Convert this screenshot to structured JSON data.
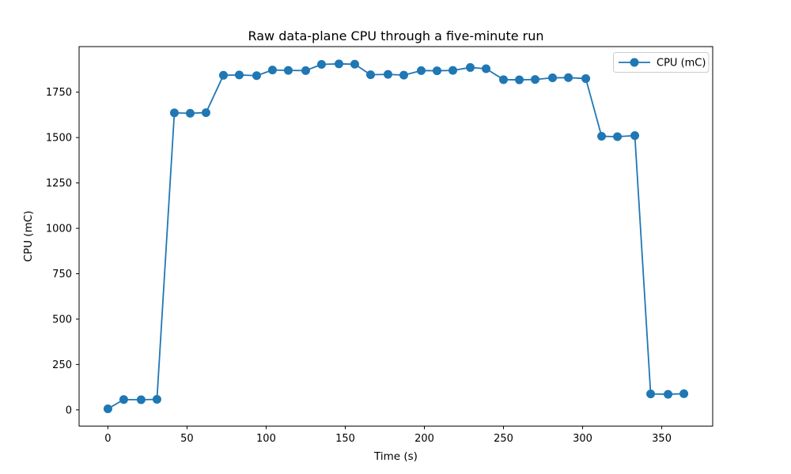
{
  "chart_data": {
    "type": "line",
    "title": "Raw data-plane CPU through a five-minute run",
    "xlabel": "Time (s)",
    "ylabel": "CPU (mC)",
    "series": [
      {
        "name": "CPU (mC)",
        "color": "#1f77b4",
        "marker": "circle",
        "x": [
          0,
          10,
          21,
          31,
          42,
          52,
          62,
          73,
          83,
          94,
          104,
          114,
          125,
          135,
          146,
          156,
          166,
          177,
          187,
          198,
          208,
          218,
          229,
          239,
          250,
          260,
          270,
          281,
          291,
          302,
          312,
          322,
          333,
          343,
          354,
          364
        ],
        "y": [
          6,
          57,
          56,
          58,
          1636,
          1634,
          1637,
          1843,
          1845,
          1841,
          1872,
          1870,
          1869,
          1903,
          1906,
          1904,
          1846,
          1848,
          1844,
          1869,
          1868,
          1870,
          1886,
          1879,
          1819,
          1818,
          1820,
          1829,
          1830,
          1825,
          1507,
          1505,
          1511,
          88,
          86,
          89
        ]
      }
    ],
    "xticks": [
      0,
      50,
      100,
      150,
      200,
      250,
      300,
      350
    ],
    "yticks": [
      0,
      250,
      500,
      750,
      1000,
      1250,
      1500,
      1750
    ],
    "xlim": [
      -18.2,
      382.2
    ],
    "ylim": [
      -89,
      2001
    ],
    "grid": false,
    "legend": {
      "position": "upper right",
      "entries": [
        "CPU (mC)"
      ]
    },
    "background": "#ffffff",
    "spine_color": "#000000"
  }
}
